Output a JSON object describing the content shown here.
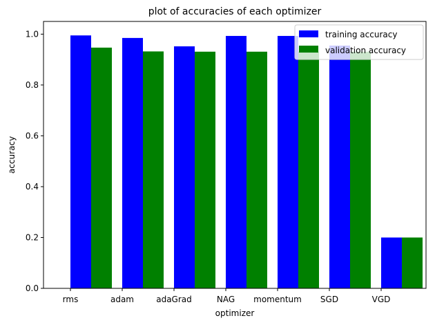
{
  "chart_data": {
    "type": "bar",
    "title": "plot of accuracies of each optimizer",
    "xlabel": "optimizer",
    "ylabel": "accuracy",
    "categories": [
      "rms",
      "adam",
      "adaGrad",
      "NAG",
      "momentum",
      "SGD",
      "VGD"
    ],
    "series": [
      {
        "name": "training accuracy",
        "color": "#0000ff",
        "values": [
          0.995,
          0.985,
          0.952,
          0.993,
          0.993,
          0.955,
          0.2
        ]
      },
      {
        "name": "validation accuracy",
        "color": "#008000",
        "values": [
          0.947,
          0.932,
          0.931,
          0.931,
          0.931,
          0.931,
          0.2
        ]
      }
    ],
    "ylim": [
      0,
      1.05
    ],
    "yticks": [
      "0.0",
      "0.2",
      "0.4",
      "0.6",
      "0.8",
      "1.0"
    ],
    "grid": false,
    "legend_position": "top-right"
  }
}
